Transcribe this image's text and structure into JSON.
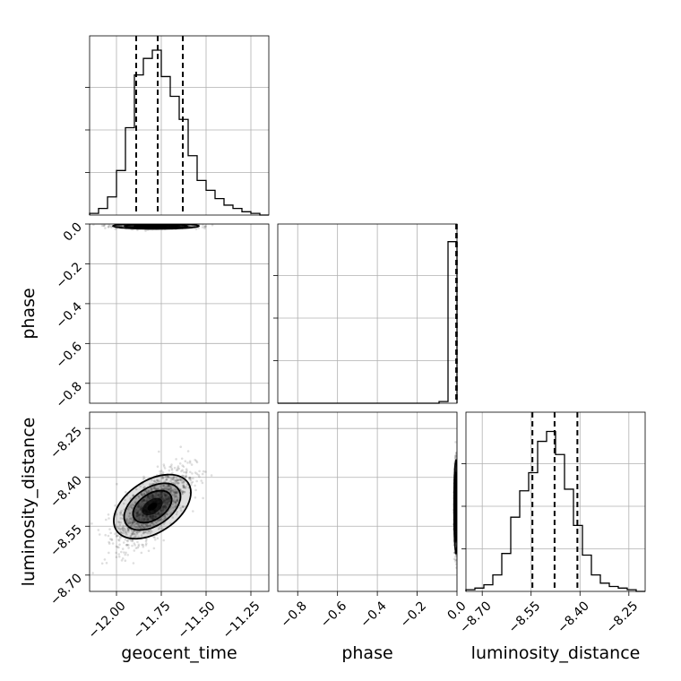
{
  "chart_data": {
    "type": "corner",
    "parameters": [
      {
        "name": "geocent_time",
        "label": "geocent_time",
        "range": [
          -12.15,
          -11.15
        ],
        "ticks": [
          {
            "value": -12.0,
            "label": "−12.00"
          },
          {
            "value": -11.75,
            "label": "−11.75"
          },
          {
            "value": -11.5,
            "label": "−11.50"
          },
          {
            "value": -11.25,
            "label": "−11.25"
          }
        ],
        "quantiles": [
          -11.89,
          -11.77,
          -11.63
        ],
        "histogram": {
          "bin_start": -12.15,
          "bin_width": 0.05,
          "counts": [
            0.01,
            0.04,
            0.11,
            0.27,
            0.53,
            0.85,
            0.95,
            1.0,
            0.84,
            0.72,
            0.58,
            0.36,
            0.21,
            0.15,
            0.1,
            0.06,
            0.04,
            0.02,
            0.01,
            0.0
          ]
        }
      },
      {
        "name": "phase",
        "label": "phase",
        "range": [
          -0.9,
          0.0
        ],
        "ticks": [
          {
            "value": -0.8,
            "label": "−0.8"
          },
          {
            "value": -0.6,
            "label": "−0.6"
          },
          {
            "value": -0.4,
            "label": "−0.4"
          },
          {
            "value": -0.2,
            "label": "−0.2"
          },
          {
            "value": 0.0,
            "label": "0.0"
          }
        ],
        "quantiles": [
          -0.004,
          -0.002,
          -0.001
        ],
        "histogram": {
          "bin_start": -0.9,
          "bin_width": 0.045,
          "counts": [
            0.0,
            0.0,
            0.0,
            0.0,
            0.0,
            0.0,
            0.0,
            0.0,
            0.0,
            0.0,
            0.0,
            0.0,
            0.0,
            0.0,
            0.0,
            0.0,
            0.0,
            0.0,
            0.01,
            0.98
          ]
        }
      },
      {
        "name": "luminosity_distance",
        "label": "luminosity_distance",
        "range": [
          -8.75,
          -8.2
        ],
        "ticks": [
          {
            "value": -8.7,
            "label": "−8.70"
          },
          {
            "value": -8.55,
            "label": "−8.55"
          },
          {
            "value": -8.4,
            "label": "−8.40"
          },
          {
            "value": -8.25,
            "label": "−8.25"
          }
        ],
        "quantiles": [
          -8.546,
          -8.478,
          -8.408
        ],
        "histogram": {
          "bin_start": -8.75,
          "bin_width": 0.0275,
          "counts": [
            0.01,
            0.02,
            0.04,
            0.1,
            0.23,
            0.45,
            0.61,
            0.72,
            0.91,
            0.97,
            0.83,
            0.62,
            0.4,
            0.22,
            0.1,
            0.05,
            0.03,
            0.02,
            0.01,
            0.0
          ]
        }
      }
    ],
    "pairs": [
      {
        "x": "geocent_time",
        "y": "phase",
        "center": [
          -11.78,
          -0.01
        ],
        "spread": [
          0.1,
          0.006
        ],
        "correlation": 0.0
      },
      {
        "x": "geocent_time",
        "y": "luminosity_distance",
        "center": [
          -11.8,
          -8.49
        ],
        "spread": [
          0.1,
          0.06
        ],
        "correlation": 0.7
      },
      {
        "x": "phase",
        "y": "luminosity_distance",
        "center": [
          -0.005,
          -8.49
        ],
        "spread": [
          0.004,
          0.06
        ],
        "correlation": 0.0
      }
    ],
    "grid": true
  }
}
